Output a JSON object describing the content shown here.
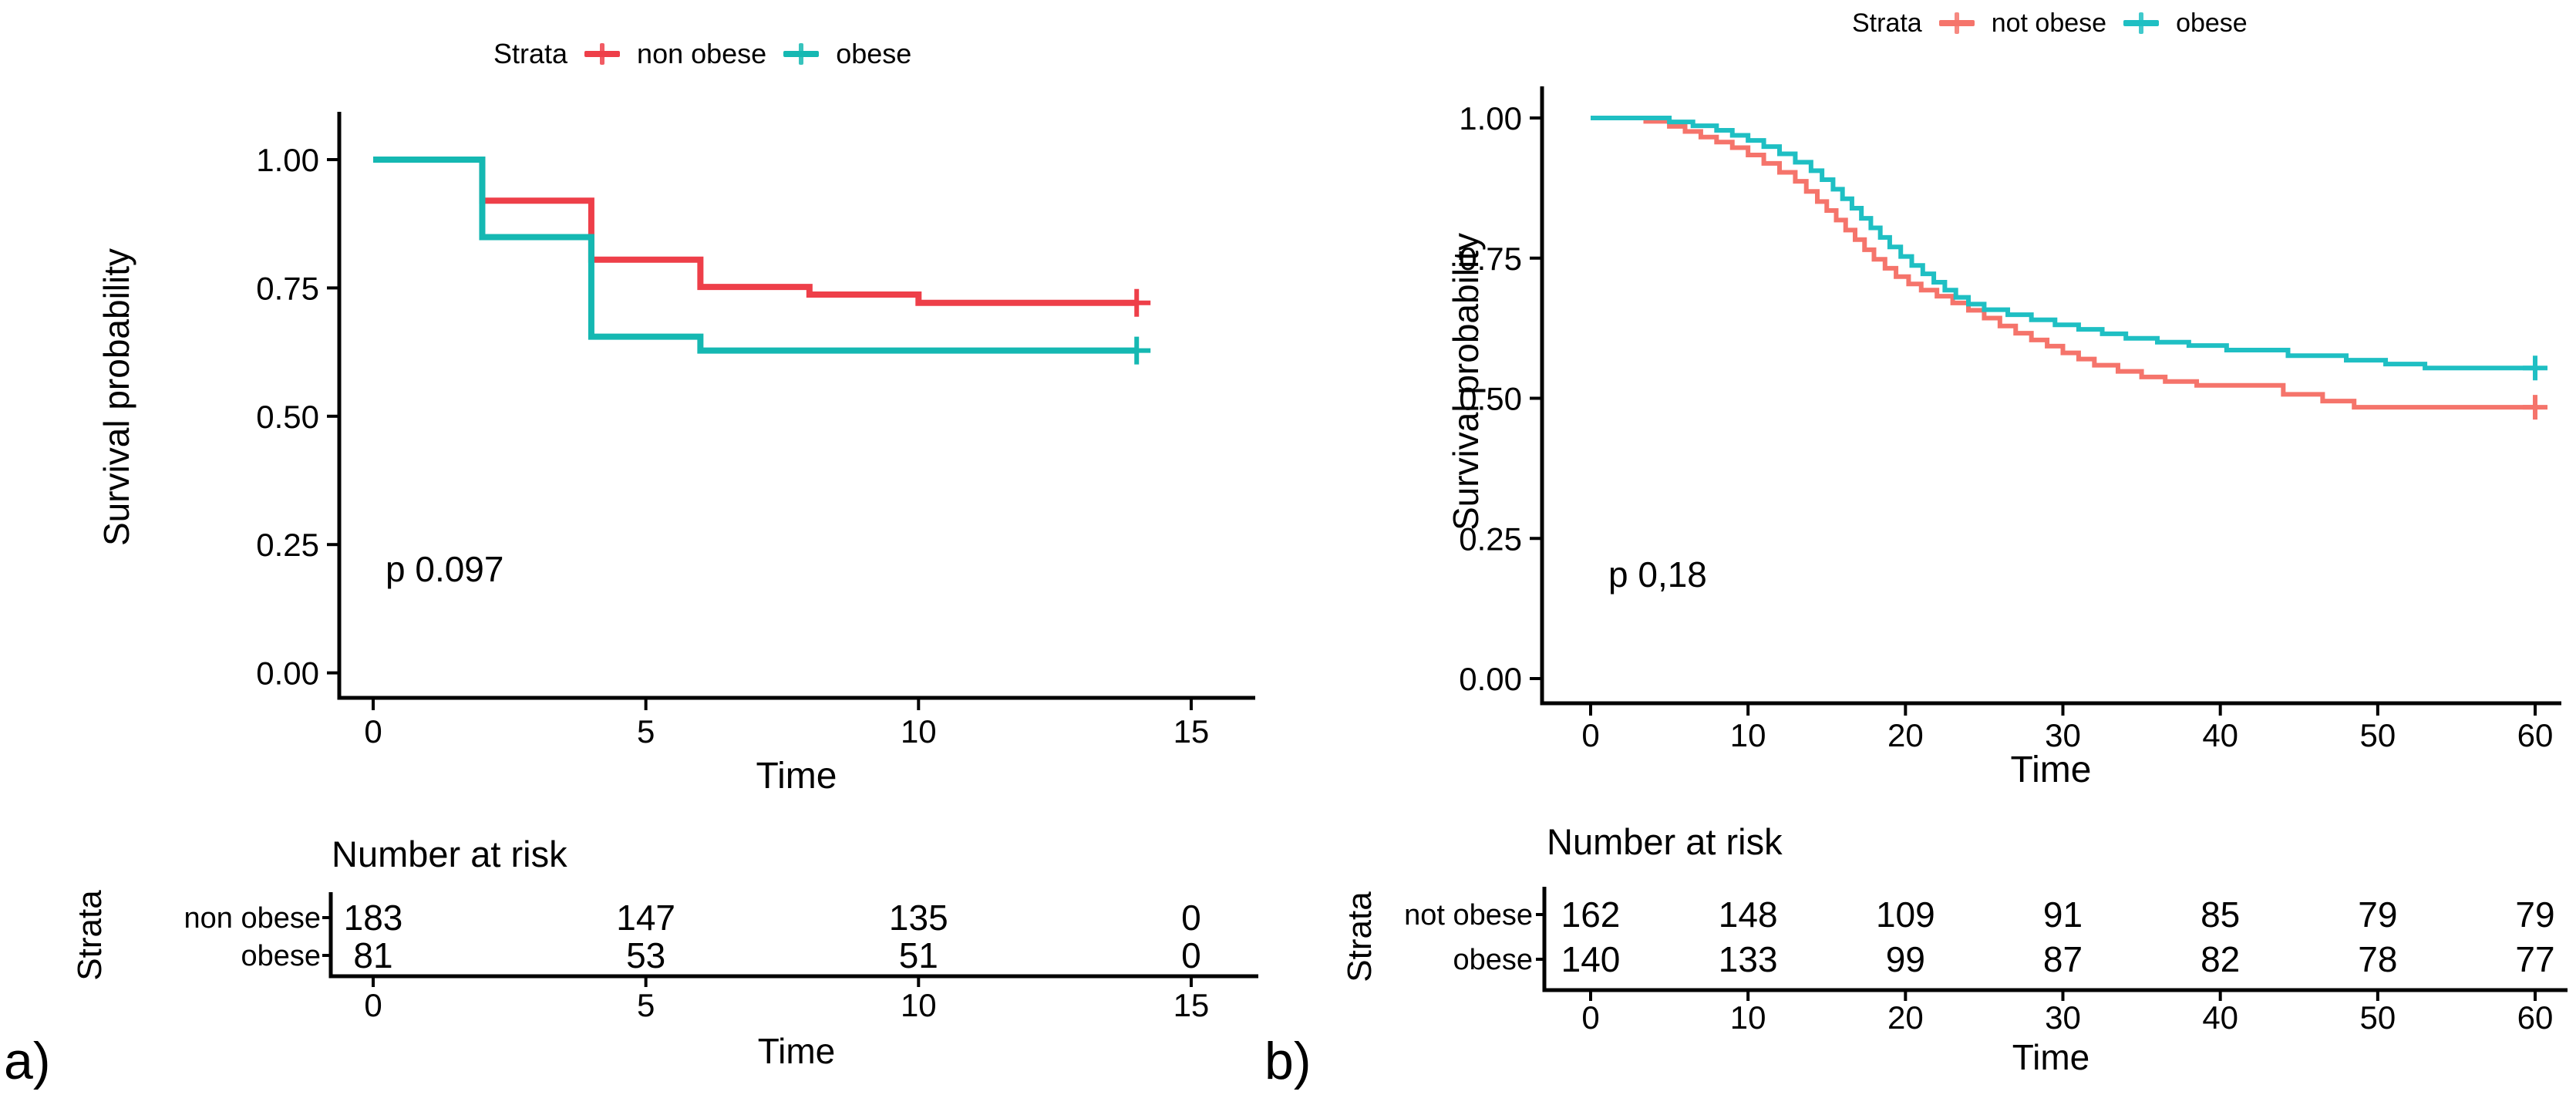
{
  "panels": [
    {
      "panel_label": "a)",
      "legend": {
        "title": "Strata",
        "items": [
          {
            "label": "non obese",
            "color": "#ee3f49"
          },
          {
            "label": "obese",
            "color": "#15b8b2"
          }
        ]
      },
      "y_axis": {
        "label": "Survival probability",
        "ticks": [
          "0.00",
          "0.25",
          "0.50",
          "0.75",
          "1.00"
        ]
      },
      "x_axis": {
        "label": "Time",
        "ticks": [
          "0",
          "5",
          "10",
          "15"
        ]
      },
      "pvalue": "p 0.097",
      "risk_table": {
        "title": "Number at risk",
        "strata_label": "Strata",
        "x_axis": {
          "label": "Time",
          "ticks": [
            "0",
            "5",
            "10",
            "15"
          ]
        },
        "rows": [
          {
            "label": "non obese",
            "color": "#f0868e",
            "values": [
              "183",
              "147",
              "135",
              "0"
            ]
          },
          {
            "label": "obese",
            "color": "#35d0c5",
            "values": [
              "81",
              "53",
              "51",
              "0"
            ]
          }
        ]
      },
      "chart_data": {
        "type": "line",
        "subtype": "kaplan-meier-step",
        "title": "",
        "xlabel": "Time",
        "ylabel": "Survival probability",
        "xlim": [
          0,
          15.5
        ],
        "ylim": [
          0,
          1.0
        ],
        "xticks": [
          0,
          5,
          10,
          15
        ],
        "yticks": [
          0,
          0.25,
          0.5,
          0.75,
          1.0
        ],
        "annotation": "p 0.097",
        "legend_position": "top",
        "grid": false,
        "series": [
          {
            "name": "non obese",
            "color": "#ee3f49",
            "steps": [
              [
                0,
                1.0
              ],
              [
                2,
                0.92
              ],
              [
                4,
                0.805
              ],
              [
                6,
                0.752
              ],
              [
                8,
                0.737
              ],
              [
                10,
                0.721
              ]
            ],
            "end_time": 14,
            "censor_times": [
              14
            ],
            "number_at_risk": {
              "times": [
                0,
                5,
                10,
                15
              ],
              "values": [
                183,
                147,
                135,
                0
              ]
            }
          },
          {
            "name": "obese",
            "color": "#15b8b2",
            "steps": [
              [
                0,
                1.0
              ],
              [
                2,
                0.849
              ],
              [
                4,
                0.655
              ],
              [
                6,
                0.628
              ]
            ],
            "end_time": 14,
            "censor_times": [
              14
            ],
            "number_at_risk": {
              "times": [
                0,
                5,
                10,
                15
              ],
              "values": [
                81,
                53,
                51,
                0
              ]
            }
          }
        ]
      }
    },
    {
      "panel_label": "b)",
      "legend": {
        "title": "Strata",
        "items": [
          {
            "label": "not obese",
            "color": "#f5746b"
          },
          {
            "label": "obese",
            "color": "#1fbfc3"
          }
        ]
      },
      "y_axis": {
        "label": "Survival probability",
        "ticks": [
          "0.00",
          "0.25",
          "0.50",
          "0.75",
          "1.00"
        ]
      },
      "x_axis": {
        "label": "Time",
        "ticks": [
          "0",
          "10",
          "20",
          "30",
          "40",
          "50",
          "60"
        ]
      },
      "pvalue": "p 0,18",
      "risk_table": {
        "title": "Number at risk",
        "strata_label": "Strata",
        "x_axis": {
          "label": "Time",
          "ticks": [
            "0",
            "10",
            "20",
            "30",
            "40",
            "50",
            "60"
          ]
        },
        "rows": [
          {
            "label": "not obese",
            "color": "#ef8981",
            "values": [
              "162",
              "148",
              "109",
              "91",
              "85",
              "79",
              "79"
            ]
          },
          {
            "label": "obese",
            "color": "#2eccc6",
            "values": [
              "140",
              "133",
              "99",
              "87",
              "82",
              "78",
              "77"
            ]
          }
        ]
      },
      "chart_data": {
        "type": "line",
        "subtype": "kaplan-meier-step",
        "title": "",
        "xlabel": "Time",
        "ylabel": "Survival probability",
        "xlim": [
          0,
          62
        ],
        "ylim": [
          0,
          1.0
        ],
        "xticks": [
          0,
          10,
          20,
          30,
          40,
          50,
          60
        ],
        "yticks": [
          0,
          0.25,
          0.5,
          0.75,
          1.0
        ],
        "annotation": "p 0,18",
        "legend_position": "top",
        "grid": false,
        "series": [
          {
            "name": "not obese",
            "color": "#f5746b",
            "steps": [
              [
                0,
                1.0
              ],
              [
                3.5,
                0.994
              ],
              [
                5,
                0.985
              ],
              [
                6,
                0.976
              ],
              [
                7,
                0.966
              ],
              [
                8,
                0.957
              ],
              [
                9,
                0.947
              ],
              [
                10,
                0.934
              ],
              [
                11,
                0.919
              ],
              [
                12,
                0.903
              ],
              [
                13,
                0.887
              ],
              [
                13.7,
                0.869
              ],
              [
                14.4,
                0.851
              ],
              [
                15,
                0.835
              ],
              [
                15.6,
                0.818
              ],
              [
                16.2,
                0.8
              ],
              [
                16.8,
                0.783
              ],
              [
                17.4,
                0.765
              ],
              [
                18,
                0.748
              ],
              [
                18.7,
                0.732
              ],
              [
                19.4,
                0.717
              ],
              [
                20.2,
                0.704
              ],
              [
                21,
                0.693
              ],
              [
                22,
                0.682
              ],
              [
                23,
                0.67
              ],
              [
                24,
                0.657
              ],
              [
                25,
                0.643
              ],
              [
                26,
                0.629
              ],
              [
                27,
                0.616
              ],
              [
                28,
                0.604
              ],
              [
                29,
                0.593
              ],
              [
                30,
                0.581
              ],
              [
                31,
                0.57
              ],
              [
                32,
                0.559
              ],
              [
                33.5,
                0.548
              ],
              [
                35,
                0.538
              ],
              [
                36.5,
                0.53
              ],
              [
                38.5,
                0.523
              ],
              [
                44,
                0.507
              ],
              [
                46.5,
                0.495
              ],
              [
                48.5,
                0.484
              ]
            ],
            "end_time": 60,
            "censor_times": [
              60
            ],
            "number_at_risk": {
              "times": [
                0,
                10,
                20,
                30,
                40,
                50,
                60
              ],
              "values": [
                162,
                148,
                109,
                91,
                85,
                79,
                79
              ]
            }
          },
          {
            "name": "obese",
            "color": "#1fbfc3",
            "steps": [
              [
                0,
                1.0
              ],
              [
                5,
                0.993
              ],
              [
                6.5,
                0.986
              ],
              [
                8,
                0.978
              ],
              [
                9,
                0.969
              ],
              [
                10,
                0.96
              ],
              [
                11,
                0.949
              ],
              [
                12,
                0.936
              ],
              [
                13,
                0.921
              ],
              [
                14,
                0.906
              ],
              [
                14.7,
                0.89
              ],
              [
                15.4,
                0.873
              ],
              [
                16,
                0.856
              ],
              [
                16.6,
                0.839
              ],
              [
                17.2,
                0.821
              ],
              [
                17.8,
                0.804
              ],
              [
                18.4,
                0.787
              ],
              [
                19,
                0.77
              ],
              [
                19.7,
                0.753
              ],
              [
                20.4,
                0.737
              ],
              [
                21.1,
                0.722
              ],
              [
                21.8,
                0.707
              ],
              [
                22.5,
                0.693
              ],
              [
                23.2,
                0.68
              ],
              [
                24,
                0.668
              ],
              [
                25,
                0.658
              ],
              [
                26.5,
                0.649
              ],
              [
                28,
                0.64
              ],
              [
                29.5,
                0.631
              ],
              [
                31,
                0.623
              ],
              [
                32.5,
                0.615
              ],
              [
                34,
                0.607
              ],
              [
                36,
                0.6
              ],
              [
                38,
                0.594
              ],
              [
                40.4,
                0.586
              ],
              [
                44.3,
                0.576
              ],
              [
                48,
                0.568
              ],
              [
                50.5,
                0.561
              ],
              [
                53,
                0.554
              ]
            ],
            "end_time": 60,
            "censor_times": [
              60
            ],
            "number_at_risk": {
              "times": [
                0,
                10,
                20,
                30,
                40,
                50,
                60
              ],
              "values": [
                140,
                133,
                99,
                87,
                82,
                78,
                77
              ]
            }
          }
        ]
      }
    }
  ]
}
